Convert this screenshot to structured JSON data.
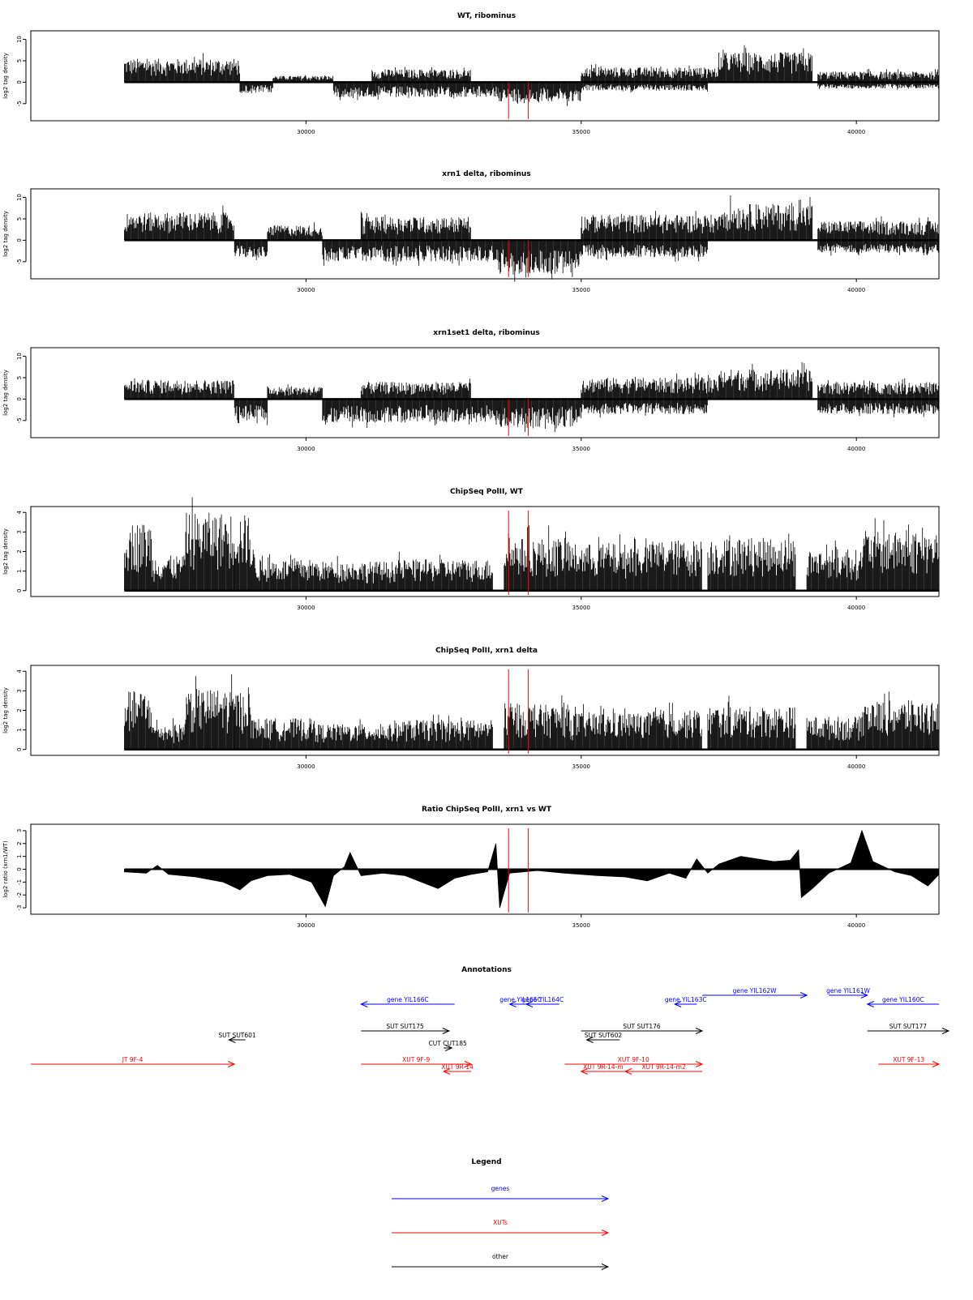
{
  "colors": {
    "genes": "#0000ff",
    "xuts": "#ff0000",
    "other": "#000000",
    "marker": "#ff0000"
  },
  "x_axis": {
    "ticks": [
      30000,
      35000,
      40000
    ],
    "range": [
      25000,
      41500
    ]
  },
  "markers": [
    33680,
    34040
  ],
  "chart_data": [
    {
      "id": "wt",
      "type": "bar",
      "title": "WT, ribominus",
      "ylabel": "log2 tag density",
      "ylim": [
        -9,
        12
      ],
      "yticks": [
        -5,
        0,
        5,
        10
      ],
      "ytick_labels": [
        "-5",
        "0",
        "5",
        "10"
      ],
      "xlim": [
        25000,
        41500
      ],
      "segments": [
        {
          "x0": 26700,
          "x1": 28800,
          "sign": 1,
          "amp": 5.5
        },
        {
          "x0": 28800,
          "x1": 29400,
          "sign": -1,
          "amp": 2.5
        },
        {
          "x0": 29400,
          "x1": 30500,
          "sign": 1,
          "amp": 1.5
        },
        {
          "x0": 30500,
          "x1": 33500,
          "sign": -1,
          "amp": 3.5
        },
        {
          "x0": 31200,
          "x1": 33000,
          "sign": 1,
          "amp": 3.0
        },
        {
          "x0": 33500,
          "x1": 35000,
          "sign": -1,
          "amp": 4.5
        },
        {
          "x0": 35000,
          "x1": 37500,
          "sign": 1,
          "amp": 3.5
        },
        {
          "x0": 35000,
          "x1": 37300,
          "sign": -1,
          "amp": 2.0
        },
        {
          "x0": 37500,
          "x1": 39200,
          "sign": 1,
          "amp": 7.0
        },
        {
          "x0": 39300,
          "x1": 41500,
          "sign": 1,
          "amp": 2.5
        },
        {
          "x0": 39300,
          "x1": 41500,
          "sign": -1,
          "amp": 1.5
        }
      ]
    },
    {
      "id": "xrn1",
      "type": "bar",
      "title": "xrn1 delta, ribominus",
      "ylabel": "log2 tag density",
      "ylim": [
        -9,
        12
      ],
      "yticks": [
        -5,
        0,
        5,
        10
      ],
      "ytick_labels": [
        "-5",
        "0",
        "5",
        "10"
      ],
      "xlim": [
        25000,
        41500
      ],
      "segments": [
        {
          "x0": 26700,
          "x1": 28700,
          "sign": 1,
          "amp": 6.5
        },
        {
          "x0": 28700,
          "x1": 29300,
          "sign": -1,
          "amp": 4.0
        },
        {
          "x0": 29300,
          "x1": 30300,
          "sign": 1,
          "amp": 3.5
        },
        {
          "x0": 30300,
          "x1": 33500,
          "sign": -1,
          "amp": 5.0
        },
        {
          "x0": 31000,
          "x1": 33000,
          "sign": 1,
          "amp": 5.5
        },
        {
          "x0": 33500,
          "x1": 35000,
          "sign": -1,
          "amp": 8.0
        },
        {
          "x0": 35000,
          "x1": 37500,
          "sign": 1,
          "amp": 6.0
        },
        {
          "x0": 35000,
          "x1": 37300,
          "sign": -1,
          "amp": 4.0
        },
        {
          "x0": 37500,
          "x1": 39200,
          "sign": 1,
          "amp": 8.5
        },
        {
          "x0": 39300,
          "x1": 41500,
          "sign": 1,
          "amp": 4.5
        },
        {
          "x0": 39300,
          "x1": 41500,
          "sign": -1,
          "amp": 3.0
        }
      ]
    },
    {
      "id": "xrn1set1",
      "type": "bar",
      "title": "xrn1set1 delta, ribominus",
      "ylabel": "log2 tag density",
      "ylim": [
        -9,
        12
      ],
      "yticks": [
        -5,
        0,
        5,
        10
      ],
      "ytick_labels": [
        "-5",
        "0",
        "5",
        "10"
      ],
      "xlim": [
        25000,
        41500
      ],
      "segments": [
        {
          "x0": 26700,
          "x1": 28700,
          "sign": 1,
          "amp": 4.5
        },
        {
          "x0": 28700,
          "x1": 29300,
          "sign": -1,
          "amp": 5.0
        },
        {
          "x0": 29300,
          "x1": 30300,
          "sign": 1,
          "amp": 3.0
        },
        {
          "x0": 30300,
          "x1": 33500,
          "sign": -1,
          "amp": 5.5
        },
        {
          "x0": 31000,
          "x1": 33000,
          "sign": 1,
          "amp": 4.0
        },
        {
          "x0": 33500,
          "x1": 35000,
          "sign": -1,
          "amp": 6.5
        },
        {
          "x0": 35000,
          "x1": 37500,
          "sign": 1,
          "amp": 5.0
        },
        {
          "x0": 35000,
          "x1": 37300,
          "sign": -1,
          "amp": 3.5
        },
        {
          "x0": 37500,
          "x1": 39200,
          "sign": 1,
          "amp": 7.0
        },
        {
          "x0": 39300,
          "x1": 41500,
          "sign": 1,
          "amp": 4.0
        },
        {
          "x0": 39300,
          "x1": 41500,
          "sign": -1,
          "amp": 3.5
        }
      ]
    },
    {
      "id": "chip_wt",
      "type": "bar",
      "title": "ChipSeq PolII, WT",
      "ylabel": "log2 tag density",
      "ylim": [
        -0.3,
        4.3
      ],
      "yticks": [
        0,
        1,
        2,
        3,
        4
      ],
      "ytick_labels": [
        "0",
        "1",
        "2",
        "3",
        "4"
      ],
      "xlim": [
        25000,
        41500
      ],
      "segments": [
        {
          "x0": 26700,
          "x1": 27200,
          "sign": 1,
          "amp": 3.5
        },
        {
          "x0": 27200,
          "x1": 27800,
          "sign": 1,
          "amp": 1.8
        },
        {
          "x0": 27800,
          "x1": 28700,
          "sign": 1,
          "amp": 4.0
        },
        {
          "x0": 28700,
          "x1": 29000,
          "sign": 1,
          "amp": 3.9
        },
        {
          "x0": 29000,
          "x1": 29100,
          "sign": 1,
          "amp": 2.2
        },
        {
          "x0": 29100,
          "x1": 30200,
          "sign": 1,
          "amp": 1.6
        },
        {
          "x0": 30200,
          "x1": 31600,
          "sign": 1,
          "amp": 1.5
        },
        {
          "x0": 31600,
          "x1": 33400,
          "sign": 1,
          "amp": 1.6
        },
        {
          "x0": 33600,
          "x1": 34800,
          "sign": 1,
          "amp": 2.7
        },
        {
          "x0": 34800,
          "x1": 36300,
          "sign": 1,
          "amp": 2.4
        },
        {
          "x0": 36300,
          "x1": 37200,
          "sign": 1,
          "amp": 2.6
        },
        {
          "x0": 37300,
          "x1": 38900,
          "sign": 1,
          "amp": 2.7
        },
        {
          "x0": 39100,
          "x1": 40100,
          "sign": 1,
          "amp": 2.1
        },
        {
          "x0": 40100,
          "x1": 41500,
          "sign": 1,
          "amp": 3.0
        }
      ]
    },
    {
      "id": "chip_xrn1",
      "type": "bar",
      "title": "ChipSeq PolII, xrn1 delta",
      "ylabel": "log2 tag density",
      "ylim": [
        -0.3,
        4.3
      ],
      "yticks": [
        0,
        1,
        2,
        3,
        4
      ],
      "ytick_labels": [
        "0",
        "1",
        "2",
        "3",
        "4"
      ],
      "xlim": [
        25000,
        41500
      ],
      "segments": [
        {
          "x0": 26700,
          "x1": 27200,
          "sign": 1,
          "amp": 3.0
        },
        {
          "x0": 27200,
          "x1": 27800,
          "sign": 1,
          "amp": 1.3
        },
        {
          "x0": 27800,
          "x1": 28700,
          "sign": 1,
          "amp": 3.1
        },
        {
          "x0": 28700,
          "x1": 29000,
          "sign": 1,
          "amp": 3.0
        },
        {
          "x0": 29000,
          "x1": 29100,
          "sign": 1,
          "amp": 1.6
        },
        {
          "x0": 29100,
          "x1": 30200,
          "sign": 1,
          "amp": 1.6
        },
        {
          "x0": 30200,
          "x1": 31600,
          "sign": 1,
          "amp": 1.3
        },
        {
          "x0": 31600,
          "x1": 33400,
          "sign": 1,
          "amp": 1.5
        },
        {
          "x0": 33600,
          "x1": 34800,
          "sign": 1,
          "amp": 2.3
        },
        {
          "x0": 34800,
          "x1": 36300,
          "sign": 1,
          "amp": 1.9
        },
        {
          "x0": 36300,
          "x1": 37200,
          "sign": 1,
          "amp": 2.0
        },
        {
          "x0": 37300,
          "x1": 38900,
          "sign": 1,
          "amp": 2.2
        },
        {
          "x0": 39100,
          "x1": 40100,
          "sign": 1,
          "amp": 1.7
        },
        {
          "x0": 40100,
          "x1": 41500,
          "sign": 1,
          "amp": 2.5
        }
      ]
    },
    {
      "id": "ratio",
      "type": "area",
      "title": "Ratio ChipSeq PolII, xrn1 vs WT",
      "ylabel": "log2 ratio (xrn1/WT)",
      "ylim": [
        -3.5,
        3.5
      ],
      "yticks": [
        -3,
        -2,
        -1,
        0,
        1,
        2,
        3
      ],
      "ytick_labels": [
        "-3",
        "-2",
        "-1",
        "0",
        "1",
        "2",
        "3"
      ],
      "xlim": [
        25000,
        41500
      ],
      "profile": [
        [
          26700,
          -0.2
        ],
        [
          27100,
          -0.3
        ],
        [
          27300,
          0.3
        ],
        [
          27500,
          -0.4
        ],
        [
          28000,
          -0.6
        ],
        [
          28500,
          -1.0
        ],
        [
          28800,
          -1.6
        ],
        [
          29000,
          -0.9
        ],
        [
          29300,
          -0.5
        ],
        [
          29700,
          -0.4
        ],
        [
          30100,
          -1.0
        ],
        [
          30350,
          -2.9
        ],
        [
          30500,
          -0.5
        ],
        [
          30700,
          0.2
        ],
        [
          30800,
          1.3
        ],
        [
          31000,
          -0.5
        ],
        [
          31400,
          -0.3
        ],
        [
          31800,
          -0.5
        ],
        [
          32100,
          -1.0
        ],
        [
          32400,
          -1.5
        ],
        [
          32700,
          -0.7
        ],
        [
          33000,
          -0.4
        ],
        [
          33300,
          -0.2
        ],
        [
          33450,
          2.0
        ],
        [
          33520,
          -3.0
        ],
        [
          33700,
          -0.3
        ],
        [
          34200,
          -0.1
        ],
        [
          34700,
          -0.3
        ],
        [
          35300,
          -0.5
        ],
        [
          35800,
          -0.6
        ],
        [
          36200,
          -0.9
        ],
        [
          36600,
          -0.3
        ],
        [
          36900,
          -0.7
        ],
        [
          37100,
          0.8
        ],
        [
          37300,
          -0.3
        ],
        [
          37500,
          0.4
        ],
        [
          37900,
          1.0
        ],
        [
          38500,
          0.6
        ],
        [
          38800,
          0.7
        ],
        [
          38950,
          1.5
        ],
        [
          39000,
          -2.2
        ],
        [
          39200,
          -1.5
        ],
        [
          39500,
          -0.3
        ],
        [
          39900,
          0.5
        ],
        [
          40100,
          3.0
        ],
        [
          40300,
          0.6
        ],
        [
          40700,
          -0.2
        ],
        [
          41000,
          -0.5
        ],
        [
          41300,
          -1.3
        ],
        [
          41500,
          -0.4
        ]
      ]
    }
  ],
  "annotations": {
    "title": "Annotations",
    "items": [
      {
        "label": "gene YIL166C",
        "x0": 31000,
        "x1": 32700,
        "dir": "left",
        "row": 0,
        "cat": "genes"
      },
      {
        "label": "gene YIL165C",
        "x0": 33700,
        "x1": 34100,
        "dir": "left",
        "row": 0,
        "cat": "genes"
      },
      {
        "label": "gene YIL164C",
        "x0": 34000,
        "x1": 34600,
        "dir": "left",
        "row": 0,
        "cat": "genes"
      },
      {
        "label": "gene YIL163C",
        "x0": 36700,
        "x1": 37100,
        "dir": "left",
        "row": 0,
        "cat": "genes"
      },
      {
        "label": "gene YIL162W",
        "x0": 37200,
        "x1": 39100,
        "dir": "right",
        "row": -1,
        "cat": "genes"
      },
      {
        "label": "gene YIL161W",
        "x0": 39500,
        "x1": 40200,
        "dir": "right",
        "row": -1,
        "cat": "genes"
      },
      {
        "label": "gene YIL160C",
        "x0": 40200,
        "x1": 41500,
        "dir": "left",
        "row": 0,
        "cat": "genes"
      },
      {
        "label": "SUT SUT175",
        "x0": 31000,
        "x1": 32600,
        "dir": "right",
        "row": 2,
        "cat": "other"
      },
      {
        "label": "SUT SUT176",
        "x0": 35000,
        "x1": 37200,
        "dir": "right",
        "row": 2,
        "cat": "other"
      },
      {
        "label": "SUT SUT177",
        "x0": 40200,
        "x1": 41700,
        "dir": "right",
        "row": 2,
        "cat": "other"
      },
      {
        "label": "SUT SUT601",
        "x0": 28600,
        "x1": 28900,
        "dir": "left",
        "row": 3,
        "cat": "other"
      },
      {
        "label": "SUT SUT602",
        "x0": 35100,
        "x1": 35700,
        "dir": "left",
        "row": 3,
        "cat": "other"
      },
      {
        "label": "CUT CUT185",
        "x0": 32500,
        "x1": 32650,
        "dir": "right",
        "row": 4,
        "cat": "other"
      },
      {
        "label": "JT 9F-4",
        "x0": 25000,
        "x1": 28700,
        "dir": "right",
        "row": 5,
        "cat": "xuts"
      },
      {
        "label": "XUT 9F-9",
        "x0": 31000,
        "x1": 33000,
        "dir": "right",
        "row": 5,
        "cat": "xuts"
      },
      {
        "label": "XUT 9R-14",
        "x0": 32500,
        "x1": 33000,
        "dir": "left",
        "row": 6,
        "cat": "xuts"
      },
      {
        "label": "XUT 9F-10",
        "x0": 34700,
        "x1": 37200,
        "dir": "right",
        "row": 5,
        "cat": "xuts"
      },
      {
        "label": "XUT 9R-14-m",
        "x0": 35000,
        "x1": 35800,
        "dir": "left",
        "row": 6,
        "cat": "xuts"
      },
      {
        "label": "XUT 9R-14-m2",
        "x0": 35800,
        "x1": 37200,
        "dir": "left",
        "row": 6,
        "cat": "xuts"
      },
      {
        "label": "XUT 9F-13",
        "x0": 40400,
        "x1": 41500,
        "dir": "right",
        "row": 5,
        "cat": "xuts"
      }
    ]
  },
  "legend": {
    "title": "Legend",
    "items": [
      {
        "label": "genes",
        "cat": "genes"
      },
      {
        "label": "XUTs",
        "cat": "xuts"
      },
      {
        "label": "other",
        "cat": "other"
      }
    ]
  }
}
